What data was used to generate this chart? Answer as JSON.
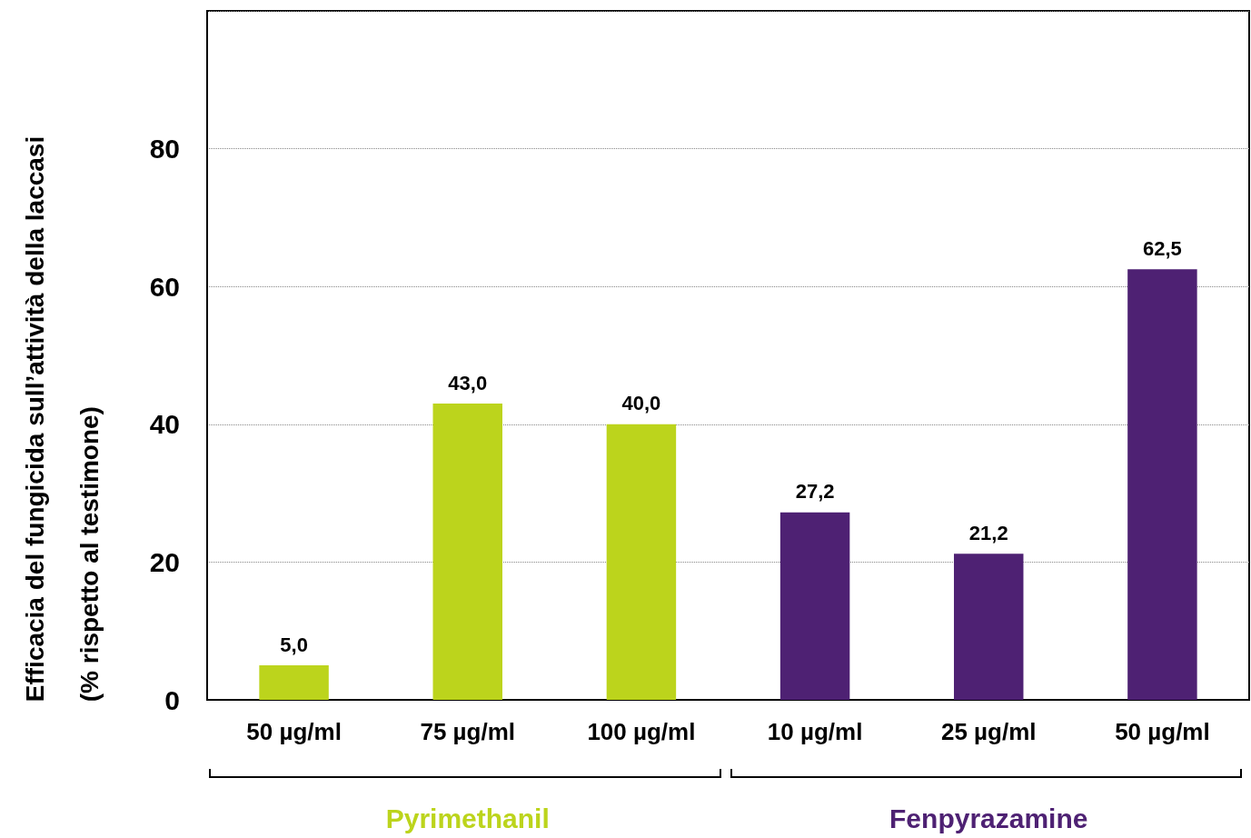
{
  "chart_data": {
    "type": "bar",
    "ylabel": "Efficacia del fungicida sull’attività della laccasi\n(% rispetto al testimone)",
    "categories": [
      "50 µg/ml",
      "75 µg/ml",
      "100 µg/ml",
      "10 µg/ml",
      "25 µg/ml",
      "50 µg/ml"
    ],
    "series": [
      {
        "name": "Pyrimethanil",
        "color": "#bcd41c",
        "values": [
          5.0,
          43.0,
          40.0,
          null,
          null,
          null
        ],
        "value_labels": [
          "5,0",
          "43,0",
          "40,0",
          null,
          null,
          null
        ]
      },
      {
        "name": "Fenpyrazamine",
        "color": "#4e2173",
        "values": [
          null,
          null,
          null,
          27.2,
          21.2,
          62.5
        ],
        "value_labels": [
          null,
          null,
          null,
          "27,2",
          "21,2",
          "62,5"
        ]
      }
    ],
    "stacked": true,
    "ylim": [
      0,
      100
    ],
    "yticks": [
      0,
      20,
      40,
      60,
      80,
      {
        "value": 100,
        "label": null
      }
    ],
    "grid": "y",
    "legend": false
  }
}
